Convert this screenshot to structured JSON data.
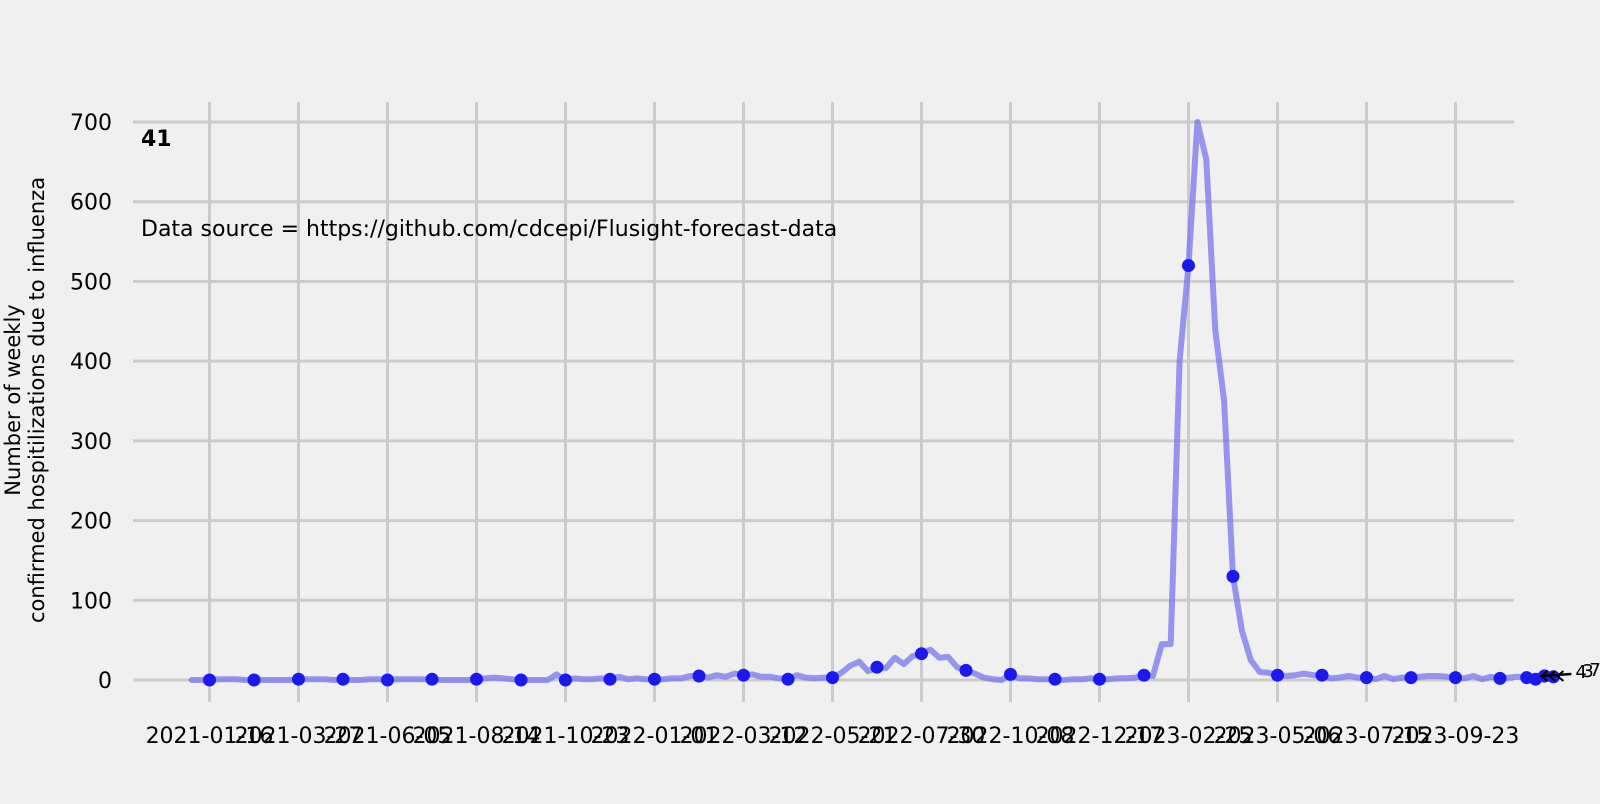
{
  "chart_data": {
    "type": "line",
    "title": "",
    "corner_label": "41",
    "annotation": "Data source = https://github.com/cdcepi/Flusight-forecast-data",
    "xlabel": "",
    "ylabel_lines": [
      "Number of weekly",
      "confirmed hospitilizations due to influenza"
    ],
    "ylim": [
      -40,
      700
    ],
    "yticks": [
      0,
      100,
      200,
      300,
      400,
      500,
      600,
      700
    ],
    "xtick_labels": [
      "2021-01-16",
      "2021-03-27",
      "2021-06-05",
      "2021-08-14",
      "2021-10-23",
      "2022-01-01",
      "2022-03-12",
      "2022-05-21",
      "2022-07-30",
      "2022-10-08",
      "2022-12-17",
      "2023-02-25",
      "2023-05-06",
      "2023-07-15",
      "2023-09-23"
    ],
    "grid": true,
    "colors": {
      "background": "#f0f0f0",
      "grid": "#cbcbcb",
      "line": "#7777ee",
      "points": "#1a1aee",
      "forecast": "#000000"
    },
    "series": [
      {
        "x_start": "2021-01-02",
        "step_days": 7,
        "values": [
          0,
          0,
          0,
          1,
          1,
          1,
          0,
          0,
          0,
          0,
          0,
          0,
          1,
          1,
          1,
          1,
          0,
          1,
          0,
          0,
          1,
          1,
          0,
          1,
          1,
          1,
          1,
          1,
          0,
          0,
          0,
          0,
          1,
          2,
          3,
          2,
          1,
          0,
          0,
          0,
          0,
          7,
          0,
          2,
          1,
          1,
          2,
          1,
          4,
          1,
          2,
          1,
          1,
          1,
          2,
          2,
          5,
          5,
          3,
          6,
          4,
          8,
          6,
          7,
          4,
          4,
          2,
          1,
          6,
          3,
          2,
          3,
          3,
          9,
          18,
          23,
          11,
          16,
          15,
          28,
          20,
          30,
          33,
          38,
          28,
          29,
          16,
          12,
          8,
          3,
          1,
          0,
          7,
          2,
          2,
          1,
          1,
          1,
          0,
          1,
          1,
          2,
          1,
          1,
          2,
          2,
          3,
          6,
          5,
          45,
          45,
          400,
          520,
          700,
          653,
          440,
          350,
          130,
          62,
          25,
          10,
          9,
          6,
          5,
          6,
          8,
          6,
          6,
          2,
          3,
          5,
          3,
          3,
          1,
          5,
          1,
          3,
          3,
          4,
          5,
          5,
          4,
          3,
          2,
          5,
          1,
          4,
          2,
          3,
          4,
          3,
          1,
          5,
          4
        ],
        "highlight_every": 5
      }
    ],
    "forecast": {
      "labels": [
        "4",
        "3",
        "7"
      ]
    }
  }
}
